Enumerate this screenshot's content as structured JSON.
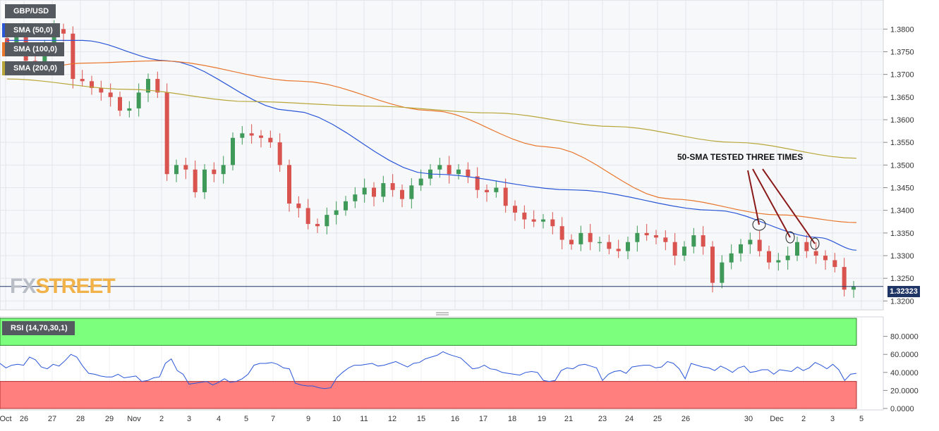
{
  "chart_data": [
    {
      "type": "candlestick",
      "symbol": "GBP/USD",
      "title": "GBP/USD",
      "ylim": [
        1.3185,
        1.383
      ],
      "y_ticks": [
        "1.3800",
        "1.3750",
        "1.3700",
        "1.3650",
        "1.3600",
        "1.3550",
        "1.3500",
        "1.3450",
        "1.3400",
        "1.3350",
        "1.3300",
        "1.3250",
        "1.3200"
      ],
      "x_tick_labels": [
        "Oct",
        "26",
        "27",
        "28",
        "29",
        "Nov",
        "2",
        "3",
        "4",
        "5",
        "7",
        "9",
        "10",
        "11",
        "12",
        "15",
        "16",
        "17",
        "18",
        "19",
        "21",
        "23",
        "24",
        "25",
        "26",
        "30",
        "Dec",
        "2",
        "3",
        "5"
      ],
      "last_price": "1.32323",
      "last_price_value": 1.3232,
      "annotation": "50-SMA TESTED THREE TIMES",
      "candles_close": [
        1.3765,
        1.3782,
        1.373,
        1.372,
        1.376,
        1.38,
        1.379,
        1.369,
        1.3685,
        1.367,
        1.366,
        1.365,
        1.362,
        1.3625,
        1.366,
        1.369,
        1.366,
        1.348,
        1.35,
        1.349,
        1.344,
        1.349,
        1.348,
        1.35,
        1.356,
        1.357,
        1.3565,
        1.356,
        1.355,
        1.35,
        1.3415,
        1.3405,
        1.337,
        1.3365,
        1.339,
        1.34,
        1.342,
        1.3435,
        1.345,
        1.343,
        1.346,
        1.3445,
        1.3425,
        1.3455,
        1.347,
        1.349,
        1.35,
        1.348,
        1.349,
        1.3475,
        1.3445,
        1.344,
        1.345,
        1.341,
        1.3395,
        1.338,
        1.3375,
        1.338,
        1.3365,
        1.3335,
        1.3325,
        1.335,
        1.333,
        1.333,
        1.3315,
        1.331,
        1.333,
        1.335,
        1.3345,
        1.334,
        1.333,
        1.33,
        1.332,
        1.3345,
        1.332,
        1.324,
        1.3285,
        1.3305,
        1.3325,
        1.3335,
        1.331,
        1.3285,
        1.329,
        1.33,
        1.333,
        1.331,
        1.33,
        1.329,
        1.3275,
        1.3225,
        1.3232
      ],
      "series": [
        {
          "name": "SMA (50,0)",
          "color": "#2a56d8",
          "anchors": [
            [
              0,
              1.3775
            ],
            [
              8,
              1.3775
            ],
            [
              17,
              1.373
            ],
            [
              30,
              1.362
            ],
            [
              45,
              1.348
            ],
            [
              60,
              1.3445
            ],
            [
              75,
              1.34
            ],
            [
              86,
              1.334
            ],
            [
              90,
              1.3312
            ]
          ]
        },
        {
          "name": "SMA (100,0)",
          "color": "#e8762c",
          "anchors": [
            [
              0,
              1.37
            ],
            [
              10,
              1.3725
            ],
            [
              20,
              1.373
            ],
            [
              38,
              1.3685
            ],
            [
              55,
              1.362
            ],
            [
              70,
              1.354
            ],
            [
              86,
              1.3425
            ],
            [
              100,
              1.339
            ],
            [
              110,
              1.3373
            ]
          ]
        },
        {
          "name": "SMA (200,0)",
          "color": "#b8a63a",
          "anchors": [
            [
              0,
              1.369
            ],
            [
              20,
              1.3667
            ],
            [
              40,
              1.364
            ],
            [
              60,
              1.363
            ],
            [
              80,
              1.3615
            ],
            [
              100,
              1.3585
            ],
            [
              120,
              1.355
            ],
            [
              140,
              1.3515
            ]
          ]
        }
      ],
      "sma_x_end": [
        90,
        110,
        140
      ]
    },
    {
      "type": "line",
      "title": "RSI (14,70,30,1)",
      "ylim": [
        0,
        100
      ],
      "y_ticks": [
        "80.0000",
        "60.0000",
        "40.0000",
        "20.0000",
        "0.0000"
      ],
      "overbought": 70,
      "oversold": 30,
      "overbought_color": "#7cff7c",
      "oversold_color": "#ff7f7f",
      "line_color": "#2a56d8",
      "values": [
        50,
        45,
        48,
        49,
        48,
        57,
        54,
        46,
        44,
        49,
        47,
        53,
        60,
        57,
        47,
        39,
        38,
        36,
        35,
        35,
        38,
        34,
        35,
        36,
        30,
        31,
        34,
        35,
        50,
        55,
        42,
        38,
        27,
        28,
        29,
        30,
        26,
        29,
        33,
        29,
        30,
        33,
        38,
        48,
        50,
        50,
        51,
        49,
        45,
        44,
        28,
        26,
        25,
        25,
        23,
        22,
        23,
        34,
        40,
        45,
        48,
        48,
        49,
        50,
        47,
        48,
        50,
        52,
        49,
        46,
        50,
        51,
        55,
        57,
        59,
        63,
        60,
        58,
        56,
        50,
        44,
        45,
        48,
        44,
        43,
        40,
        39,
        38,
        37,
        40,
        41,
        40,
        31,
        30,
        31,
        42,
        45,
        44,
        48,
        49,
        47,
        45,
        31,
        38,
        41,
        42,
        39,
        46,
        47,
        48,
        48,
        45,
        46,
        52,
        50,
        44,
        33,
        50,
        48,
        46,
        45,
        42,
        47,
        44,
        40,
        45,
        47,
        40,
        41,
        43,
        43,
        38,
        43,
        42,
        41,
        46,
        42,
        45,
        51,
        48,
        44,
        49,
        43,
        31,
        38,
        39
      ]
    }
  ],
  "legend": {
    "sma50": "SMA (50,0)",
    "sma100": "SMA (100,0)",
    "sma200": "SMA (200,0)"
  },
  "watermark": {
    "fx": "FX",
    "street": "STREET"
  }
}
